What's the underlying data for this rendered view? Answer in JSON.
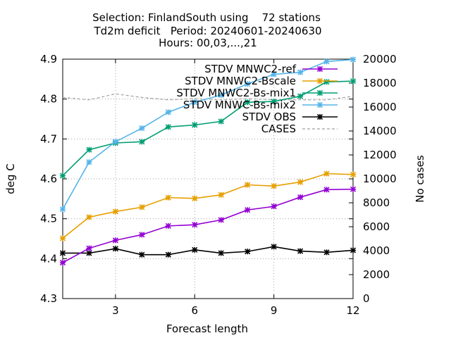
{
  "chart_data": {
    "type": "line",
    "title_lines": [
      "Selection: FinlandSouth using    72 stations",
      "Td2m deficit   Period: 20240601-20240630",
      "Hours: 00,03,...,21"
    ],
    "xlabel": "Forecast length",
    "ylabel": "deg C",
    "y2label": "No cases",
    "xlim": [
      1,
      12
    ],
    "ylim": [
      4.3,
      4.9
    ],
    "y2lim": [
      0,
      20000
    ],
    "xticks": [
      3,
      6,
      9,
      12
    ],
    "yticks": [
      "4.3",
      "4.4",
      "4.5",
      "4.6",
      "4.7",
      "4.8",
      "4.9"
    ],
    "y2ticks": [
      "0",
      "2000",
      "4000",
      "6000",
      "8000",
      "10000",
      "12000",
      "14000",
      "16000",
      "18000",
      "20000"
    ],
    "grid": true,
    "legend_position": "top-right",
    "x": [
      1,
      2,
      3,
      4,
      5,
      6,
      7,
      8,
      9,
      10,
      11,
      12
    ],
    "series": [
      {
        "name": "STDV MNWC2-ref",
        "color": "#9400d3",
        "axis": "y1",
        "values": [
          4.39,
          4.426,
          4.446,
          4.46,
          4.482,
          4.485,
          4.497,
          4.522,
          4.531,
          4.554,
          4.573,
          4.574
        ]
      },
      {
        "name": "STDV MNWC2-Bscale",
        "color": "#e69f00",
        "axis": "y1",
        "values": [
          4.451,
          4.504,
          4.518,
          4.529,
          4.553,
          4.551,
          4.56,
          4.585,
          4.582,
          4.592,
          4.613,
          4.611
        ]
      },
      {
        "name": "STDV MNWC2-Bs-mix1",
        "color": "#009e73",
        "axis": "y1",
        "values": [
          4.608,
          4.673,
          4.69,
          4.693,
          4.73,
          4.735,
          4.744,
          4.792,
          4.794,
          4.807,
          4.843,
          4.845
        ]
      },
      {
        "name": "STDV MNWC-Bs-mix2",
        "color": "#56b4e9",
        "axis": "y1",
        "values": [
          4.524,
          4.642,
          4.693,
          4.727,
          4.767,
          4.792,
          4.81,
          4.838,
          4.862,
          4.867,
          4.894,
          4.899
        ]
      },
      {
        "name": "STDV OBS",
        "color": "#000000",
        "axis": "y1",
        "values": [
          4.414,
          4.414,
          4.425,
          4.41,
          4.41,
          4.422,
          4.414,
          4.418,
          4.43,
          4.419,
          4.416,
          4.421
        ]
      },
      {
        "name": "CASES",
        "color": "#a0a0a0",
        "axis": "y2",
        "dashed": true,
        "values": [
          16800,
          16600,
          17100,
          16800,
          16600,
          16700,
          16600,
          16700,
          16600,
          16600,
          16600,
          16900
        ]
      }
    ]
  }
}
